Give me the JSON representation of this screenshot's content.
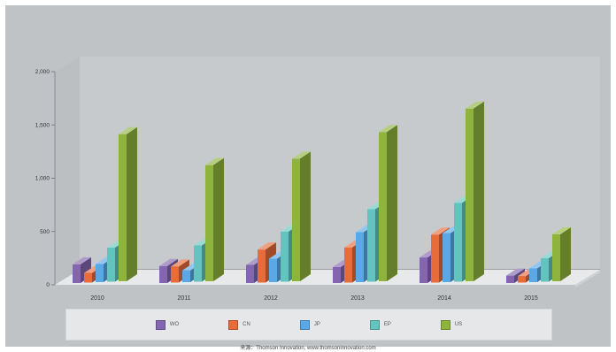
{
  "chart_data": {
    "type": "bar",
    "view": "3d-clustered",
    "categories": [
      "2010",
      "2011",
      "2012",
      "2013",
      "2014",
      "2015"
    ],
    "series": [
      {
        "name": "WO",
        "color": "#8466b0",
        "values": [
          175,
          160,
          170,
          150,
          240,
          70
        ]
      },
      {
        "name": "CN",
        "color": "#e86b3a",
        "values": [
          90,
          150,
          310,
          330,
          450,
          60
        ]
      },
      {
        "name": "JP",
        "color": "#5aa9e6",
        "values": [
          170,
          110,
          220,
          470,
          460,
          130
        ]
      },
      {
        "name": "EP",
        "color": "#63c4bf",
        "values": [
          320,
          340,
          470,
          680,
          740,
          220
        ]
      },
      {
        "name": "US",
        "color": "#8fb43d",
        "values": [
          1380,
          1090,
          1150,
          1400,
          1620,
          440
        ]
      }
    ],
    "yticks": [
      "2,000",
      "1,500",
      "1,000",
      "500",
      "0"
    ],
    "ylim": [
      0,
      2000
    ],
    "legend_position": "bottom"
  },
  "source_note": "来源：Thomson Innovation, www.thomsoninnovation.com"
}
